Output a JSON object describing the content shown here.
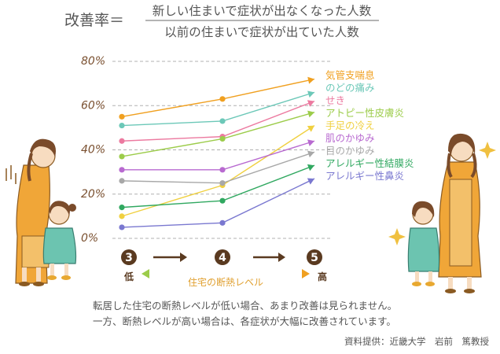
{
  "formula": {
    "lhs": "改善率＝",
    "numerator": "新しい住まいで症状が出なくなった人数",
    "denominator": "以前の住まいで症状が出ていた人数"
  },
  "chart_data": {
    "type": "line",
    "title": "",
    "xlabel": "住宅の断熱レベル",
    "ylabel": "",
    "x": [
      "3",
      "4",
      "5"
    ],
    "x_ends": {
      "low": "低",
      "high": "高"
    },
    "ylim": [
      0,
      80
    ],
    "yticks": [
      0,
      20,
      40,
      60,
      80
    ],
    "ytick_suffix": "%",
    "grid": true,
    "legend": "right",
    "series": [
      {
        "name": "気管支喘息",
        "color": "#f0a020",
        "values": [
          55,
          63,
          72
        ]
      },
      {
        "name": "のどの痛み",
        "color": "#6cc8b8",
        "values": [
          51,
          53,
          66
        ]
      },
      {
        "name": "せき",
        "color": "#ec7aa0",
        "values": [
          44,
          46,
          62
        ]
      },
      {
        "name": "アトピー性皮膚炎",
        "color": "#9ccc4a",
        "values": [
          37,
          45,
          57
        ]
      },
      {
        "name": "手足の冷え",
        "color": "#f0d040",
        "values": [
          10,
          24,
          51
        ]
      },
      {
        "name": "肌のかゆみ",
        "color": "#b86ad0",
        "values": [
          31,
          31,
          44
        ]
      },
      {
        "name": "目のかゆみ",
        "color": "#a8a8a8",
        "values": [
          26,
          25,
          39
        ]
      },
      {
        "name": "アレルギー性結膜炎",
        "color": "#30a860",
        "values": [
          14,
          17,
          33
        ]
      },
      {
        "name": "アレルギー性鼻炎",
        "color": "#7a78d0",
        "values": [
          5,
          7,
          27
        ]
      }
    ]
  },
  "caption": {
    "line1": "転居した住宅の断熱レベルが低い場合、あまり改善は見られません。",
    "line2": "一方、断熱レベルが高い場合は、各症状が大幅に改善されています。"
  },
  "credit": "資料提供：近畿大学　岩前　篤教授"
}
